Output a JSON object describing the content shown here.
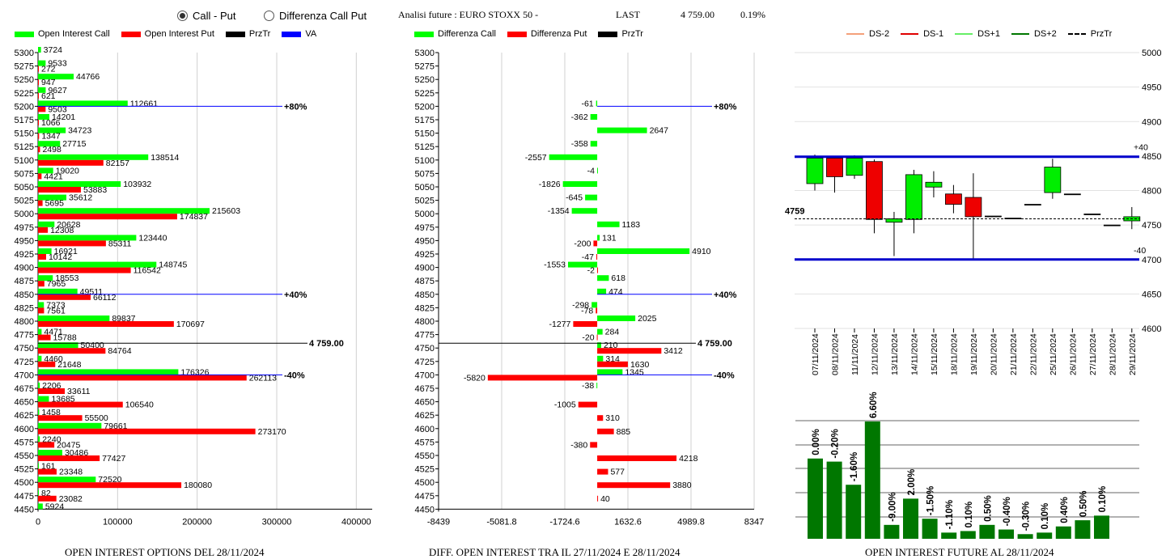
{
  "controls": {
    "radio_call_put": "Call - Put",
    "radio_diff": "Differenza Call Put",
    "title": "Analisi future : EURO STOXX 50 -",
    "last_label": "LAST",
    "last_value": "4 759.00",
    "last_change": "0.19%"
  },
  "legends": {
    "left": [
      {
        "label": "Open Interest Call",
        "color": "#00ff00"
      },
      {
        "label": "Open Interest Put",
        "color": "#ff0000"
      },
      {
        "label": "PrzTr",
        "color": "#000000"
      },
      {
        "label": "VA",
        "color": "#0000ff"
      }
    ],
    "middle": [
      {
        "label": "Differenza Call",
        "color": "#00ff00"
      },
      {
        "label": "Differenza Put",
        "color": "#ff0000"
      },
      {
        "label": "PrzTr",
        "color": "#000000"
      }
    ],
    "right": [
      {
        "label": "DS-2",
        "color": "#f4a07a"
      },
      {
        "label": "DS-1",
        "color": "#e00000"
      },
      {
        "label": "DS+1",
        "color": "#66ee66"
      },
      {
        "label": "DS+2",
        "color": "#007700"
      },
      {
        "label": "PrzTr",
        "color": "#000000"
      }
    ]
  },
  "captions": {
    "left": "OPEN INTEREST OPTIONS DEL 28/11/2024",
    "middle": "DIFF. OPEN INTEREST TRA IL 27/11/2024 E 28/11/2024",
    "right": "OPEN INTEREST FUTURE AL 28/11/2024"
  },
  "chart_data": [
    {
      "type": "bar",
      "orientation": "horizontal",
      "strikes": [
        5300,
        5275,
        5250,
        5225,
        5200,
        5175,
        5150,
        5125,
        5100,
        5075,
        5050,
        5025,
        5000,
        4975,
        4950,
        4925,
        4900,
        4875,
        4850,
        4825,
        4800,
        4775,
        4750,
        4725,
        4700,
        4675,
        4650,
        4625,
        4600,
        4575,
        4550,
        4525,
        4500,
        4475,
        4450
      ],
      "series": [
        {
          "name": "Open Interest Call",
          "color": "#00ff00",
          "values": [
            3724,
            9533,
            44766,
            9627,
            112661,
            14201,
            34723,
            27715,
            138514,
            19020,
            103932,
            35612,
            215603,
            20628,
            123440,
            16921,
            148745,
            18553,
            49511,
            7373,
            89837,
            4471,
            50400,
            4460,
            176326,
            2206,
            13685,
            1458,
            79661,
            2240,
            30486,
            161,
            72520,
            82,
            5924
          ]
        },
        {
          "name": "Open Interest Put",
          "color": "#ff0000",
          "values": [
            null,
            272,
            947,
            621,
            9503,
            1066,
            1347,
            2498,
            82157,
            4421,
            53883,
            5695,
            174837,
            12308,
            85311,
            10142,
            116542,
            7965,
            66112,
            7561,
            170697,
            15788,
            84764,
            21648,
            262113,
            33611,
            106540,
            55500,
            273170,
            20475,
            77427,
            23348,
            180080,
            23082,
            null
          ]
        }
      ],
      "xaxis_ticks": [
        "0",
        "100000",
        "200000",
        "300000",
        "400000"
      ],
      "xlim": [
        0,
        420000
      ],
      "reference_lines": [
        {
          "label": "+80%",
          "strike": 5200,
          "color": "#0000ff"
        },
        {
          "label": "+40%",
          "strike": 4850,
          "color": "#0000ff"
        },
        {
          "label": "4 759.00",
          "strike": 4759,
          "color": "#000000"
        },
        {
          "label": "-40%",
          "strike": 4700,
          "color": "#0000ff"
        }
      ]
    },
    {
      "type": "bar",
      "orientation": "horizontal",
      "strikes": [
        5300,
        5275,
        5250,
        5225,
        5200,
        5175,
        5150,
        5125,
        5100,
        5075,
        5050,
        5025,
        5000,
        4975,
        4950,
        4925,
        4900,
        4875,
        4850,
        4825,
        4800,
        4775,
        4750,
        4725,
        4700,
        4675,
        4650,
        4625,
        4600,
        4575,
        4550,
        4525,
        4500,
        4475,
        4450
      ],
      "series": [
        {
          "name": "Differenza Call",
          "color": "#00ff00",
          "values": [
            null,
            null,
            null,
            null,
            -61,
            -362,
            2647,
            -358,
            -2557,
            -4,
            -1826,
            -645,
            -1354,
            1183,
            131,
            4910,
            -1553,
            618,
            474,
            -298,
            2025,
            284,
            210,
            314,
            1345,
            -38,
            null,
            null,
            null,
            null,
            null,
            null,
            null,
            null,
            null
          ]
        },
        {
          "name": "Differenza Put",
          "color": "#ff0000",
          "values": [
            null,
            null,
            null,
            null,
            null,
            null,
            null,
            null,
            null,
            null,
            null,
            null,
            null,
            null,
            -200,
            -47,
            -2,
            null,
            null,
            -78,
            -1277,
            -20,
            3412,
            1630,
            -5820,
            null,
            -1005,
            310,
            885,
            -380,
            4218,
            577,
            3880,
            40,
            null
          ]
        }
      ],
      "xaxis_ticks": [
        "-8439",
        "-5081.8",
        "-1724.6",
        "1632.6",
        "4989.8",
        "8347"
      ],
      "xlim": [
        -8439,
        8347
      ],
      "reference_lines": [
        {
          "label": "+80%",
          "strike": 5200,
          "color": "#0000ff"
        },
        {
          "label": "+40%",
          "strike": 4850,
          "color": "#0000ff"
        },
        {
          "label": "4 759.00",
          "strike": 4759,
          "color": "#000000"
        },
        {
          "label": "-40%",
          "strike": 4700,
          "color": "#0000ff"
        }
      ]
    },
    {
      "type": "candlestick",
      "dates": [
        "07/11/2024",
        "08/11/2024",
        "11/11/2024",
        "12/11/2024",
        "13/11/2024",
        "14/11/2024",
        "15/11/2024",
        "18/11/2024",
        "19/11/2024",
        "20/11/2024",
        "21/11/2024",
        "22/11/2024",
        "25/11/2024",
        "26/11/2024",
        "27/11/2024",
        "28/11/2024",
        "29/11/2024"
      ],
      "open": [
        4810,
        4847,
        4822,
        4842,
        4754,
        4758,
        4805,
        4795,
        4790,
        4763,
        4760,
        4780,
        4797,
        4795,
        4766,
        4750,
        4756
      ],
      "close": [
        4847,
        4820,
        4847,
        4758,
        4759,
        4823,
        4812,
        4780,
        4762,
        4763,
        4760,
        4780,
        4834,
        4795,
        4766,
        4750,
        4762
      ],
      "high": [
        4852,
        4848,
        4851,
        4845,
        4769,
        4830,
        4828,
        4808,
        4825,
        4763,
        4760,
        4780,
        4846,
        4795,
        4766,
        4750,
        4776
      ],
      "low": [
        4800,
        4797,
        4817,
        4738,
        4705,
        4738,
        4790,
        4767,
        4700,
        4763,
        4760,
        4780,
        4788,
        4795,
        4766,
        4750,
        4744
      ],
      "yaxis_ticks": [
        "5000",
        "4950",
        "4900",
        "4850",
        "4800",
        "4750",
        "4700",
        "4650",
        "4600"
      ],
      "ylim": [
        4600,
        5000
      ],
      "bands": [
        {
          "label": "+40",
          "value": 4849,
          "color": "#0000cc"
        },
        {
          "label": "-40",
          "value": 4700,
          "color": "#0000cc"
        }
      ],
      "last": {
        "label": "4759",
        "value": 4759
      }
    },
    {
      "type": "bar",
      "categories": [
        "07/11/2024",
        "08/11/2024",
        "11/11/2024",
        "12/11/2024",
        "13/11/2024",
        "14/11/2024",
        "15/11/2024",
        "18/11/2024",
        "19/11/2024",
        "20/11/2024",
        "21/11/2024",
        "22/11/2024",
        "25/11/2024",
        "26/11/2024",
        "27/11/2024",
        "28/11/2024"
      ],
      "values": [
        26,
        25,
        17.5,
        38,
        4.5,
        13,
        6.5,
        2,
        2.5,
        4.5,
        3,
        1.5,
        2,
        4,
        6,
        7.5
      ],
      "labels": [
        "0.00%",
        "-0.20%",
        "-1.60%",
        "6.60%",
        "-9.00%",
        "2.00%",
        "-1.50%",
        "-1.10%",
        "0.10%",
        "0.50%",
        "-0.40%",
        "-0.30%",
        "0.10%",
        "0.40%",
        "0.50%",
        "0.10%"
      ],
      "color": "#007700"
    }
  ]
}
